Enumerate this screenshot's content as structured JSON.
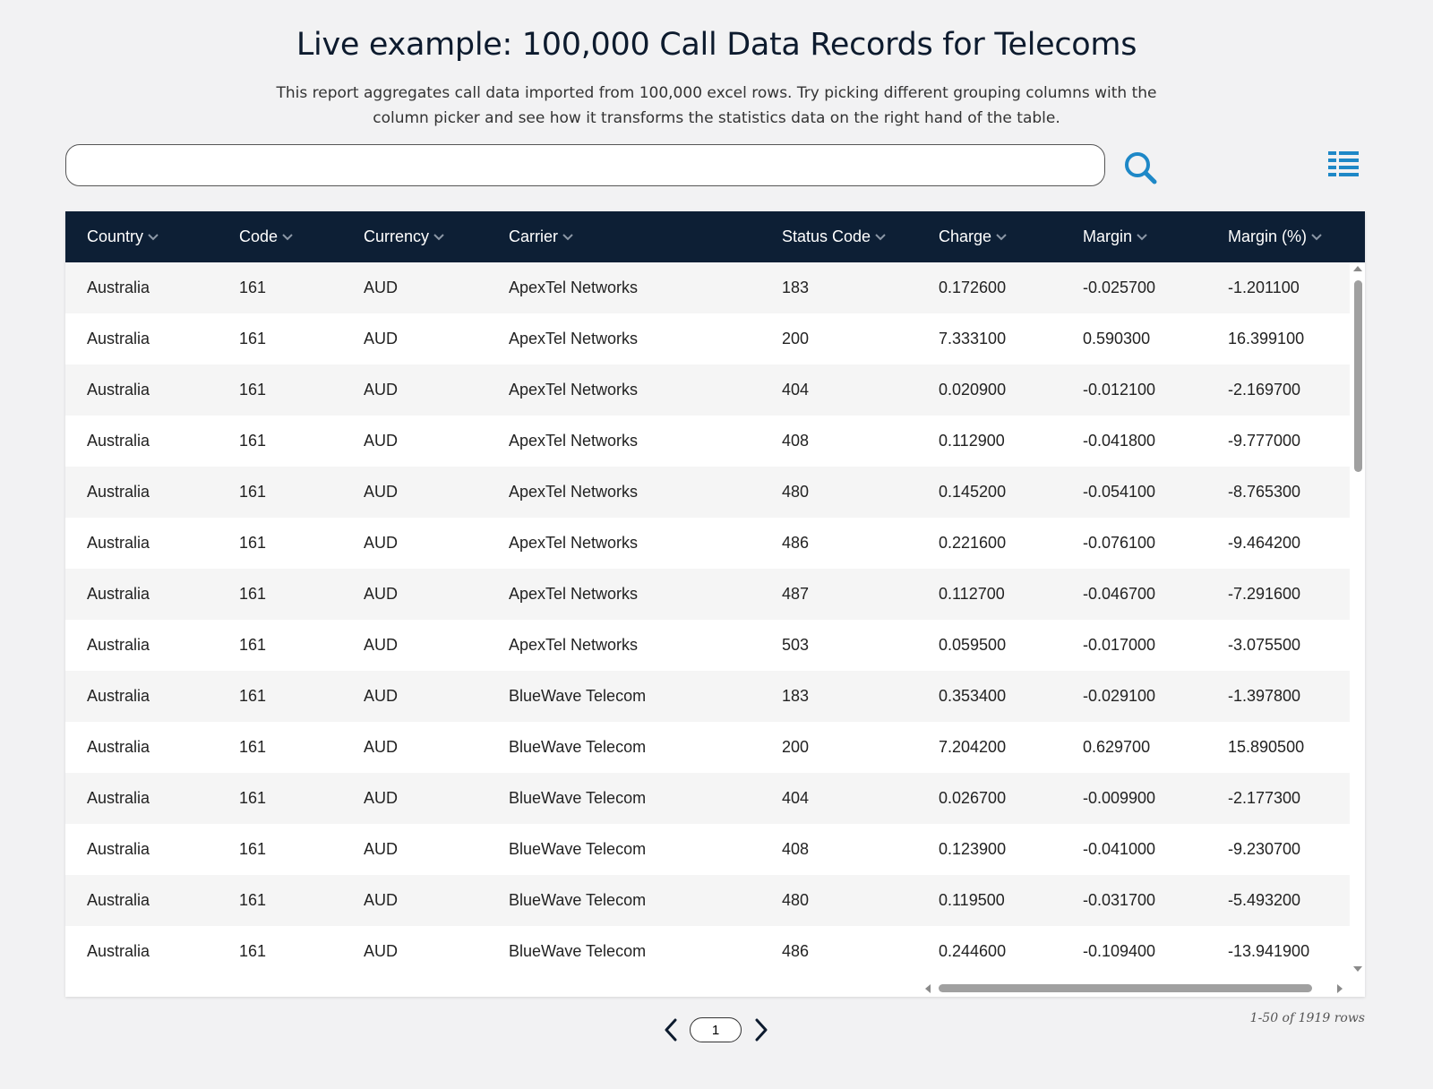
{
  "header": {
    "title": "Live example: 100,000 Call Data Records for Telecoms",
    "subtitle": "This report aggregates call data imported from 100,000 excel rows. Try picking different grouping columns with the column picker and see how it transforms the statistics data on the right hand of the table."
  },
  "search": {
    "value": "",
    "placeholder": "",
    "button_icon": "search-icon"
  },
  "column_picker": {
    "icon": "column-list-icon"
  },
  "colors": {
    "header_bg": "#0d1f35",
    "accent": "#1e88c7",
    "row_alt": "#f5f5f5"
  },
  "table": {
    "columns": [
      "Country",
      "Code",
      "Currency",
      "Carrier",
      "Status Code",
      "Charge",
      "Margin",
      "Margin (%)"
    ],
    "rows": [
      [
        "Australia",
        "161",
        "AUD",
        "ApexTel Networks",
        "183",
        "0.172600",
        "-0.025700",
        "-1.201100"
      ],
      [
        "Australia",
        "161",
        "AUD",
        "ApexTel Networks",
        "200",
        "7.333100",
        "0.590300",
        "16.399100"
      ],
      [
        "Australia",
        "161",
        "AUD",
        "ApexTel Networks",
        "404",
        "0.020900",
        "-0.012100",
        "-2.169700"
      ],
      [
        "Australia",
        "161",
        "AUD",
        "ApexTel Networks",
        "408",
        "0.112900",
        "-0.041800",
        "-9.777000"
      ],
      [
        "Australia",
        "161",
        "AUD",
        "ApexTel Networks",
        "480",
        "0.145200",
        "-0.054100",
        "-8.765300"
      ],
      [
        "Australia",
        "161",
        "AUD",
        "ApexTel Networks",
        "486",
        "0.221600",
        "-0.076100",
        "-9.464200"
      ],
      [
        "Australia",
        "161",
        "AUD",
        "ApexTel Networks",
        "487",
        "0.112700",
        "-0.046700",
        "-7.291600"
      ],
      [
        "Australia",
        "161",
        "AUD",
        "ApexTel Networks",
        "503",
        "0.059500",
        "-0.017000",
        "-3.075500"
      ],
      [
        "Australia",
        "161",
        "AUD",
        "BlueWave Telecom",
        "183",
        "0.353400",
        "-0.029100",
        "-1.397800"
      ],
      [
        "Australia",
        "161",
        "AUD",
        "BlueWave Telecom",
        "200",
        "7.204200",
        "0.629700",
        "15.890500"
      ],
      [
        "Australia",
        "161",
        "AUD",
        "BlueWave Telecom",
        "404",
        "0.026700",
        "-0.009900",
        "-2.177300"
      ],
      [
        "Australia",
        "161",
        "AUD",
        "BlueWave Telecom",
        "408",
        "0.123900",
        "-0.041000",
        "-9.230700"
      ],
      [
        "Australia",
        "161",
        "AUD",
        "BlueWave Telecom",
        "480",
        "0.119500",
        "-0.031700",
        "-5.493200"
      ],
      [
        "Australia",
        "161",
        "AUD",
        "BlueWave Telecom",
        "486",
        "0.244600",
        "-0.109400",
        "-13.941900"
      ]
    ]
  },
  "pagination": {
    "page": "1",
    "row_count": "1-50 of 1919 rows",
    "prev_icon": "chevron-left-icon",
    "next_icon": "chevron-right-icon"
  }
}
